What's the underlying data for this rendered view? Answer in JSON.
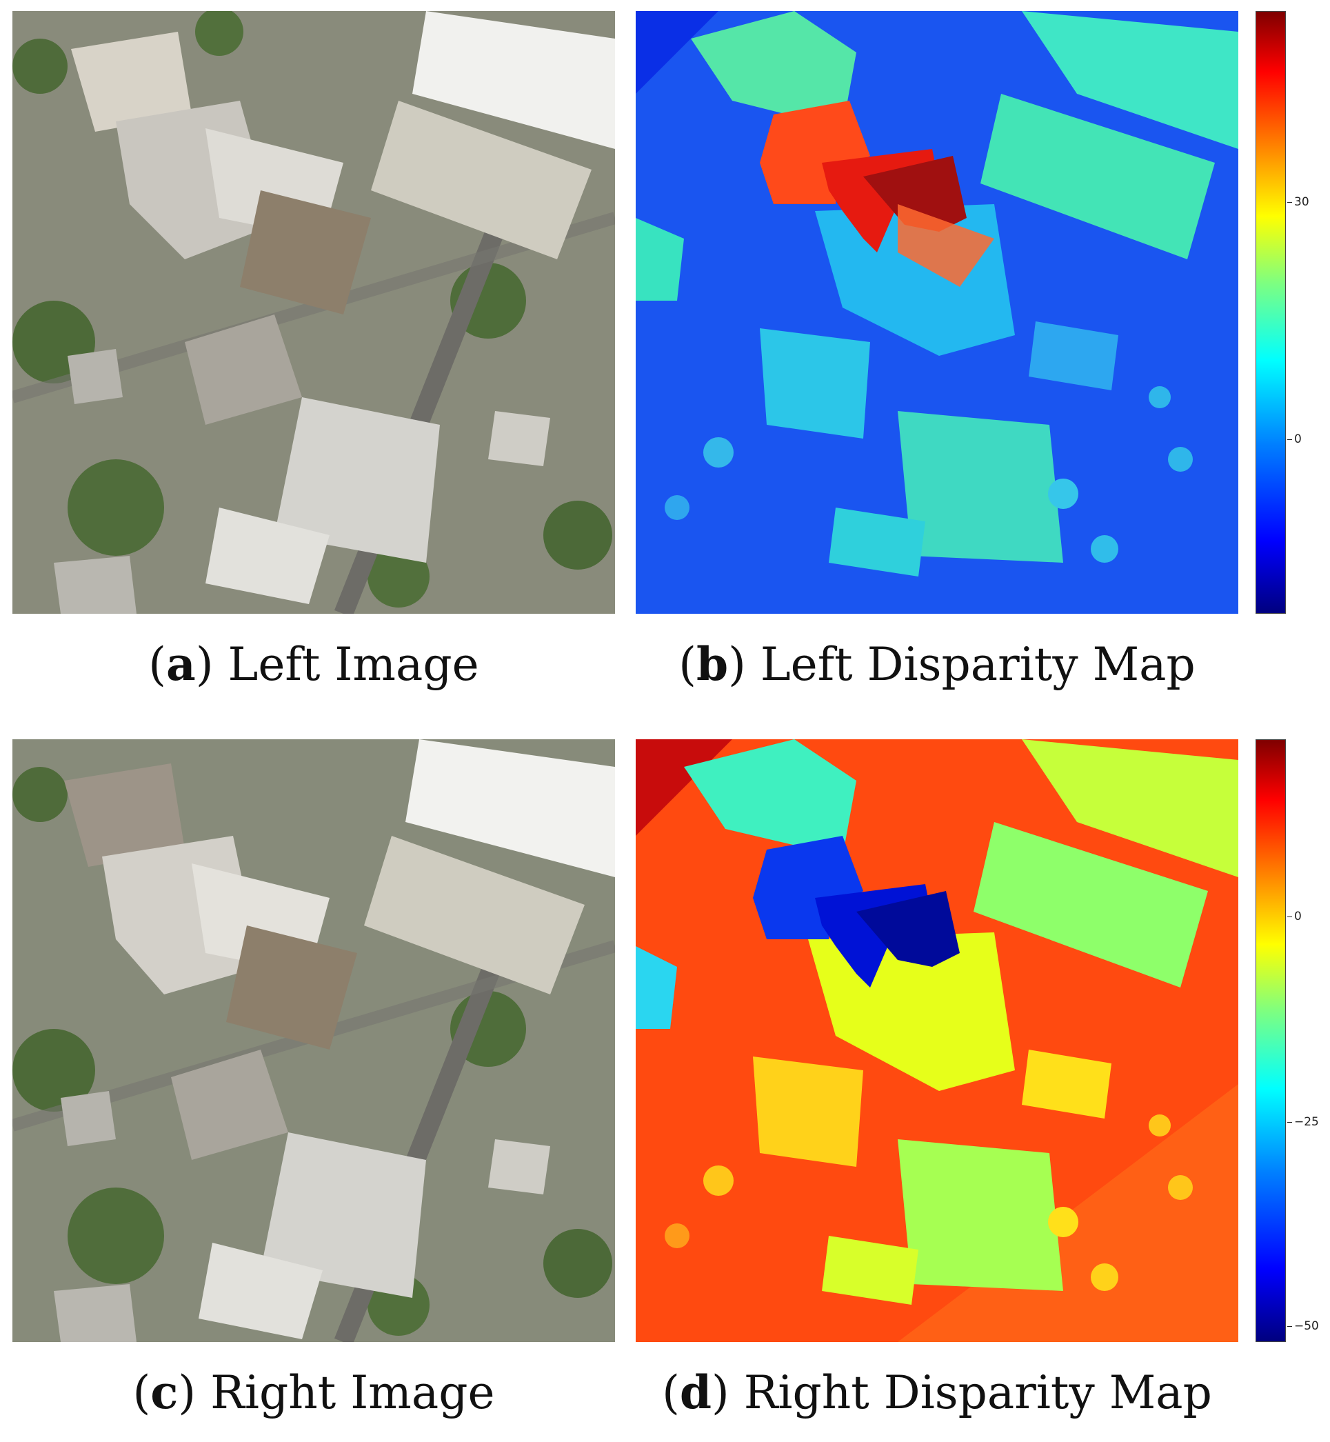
{
  "panels": {
    "a": {
      "letter": "a",
      "title": "Left Image"
    },
    "b": {
      "letter": "b",
      "title": "Left Disparity Map"
    },
    "c": {
      "letter": "c",
      "title": "Right Image"
    },
    "d": {
      "letter": "d",
      "title": "Right Disparity Map"
    }
  },
  "colorbars": {
    "b": {
      "ticks": [
        "30",
        "0"
      ],
      "colormap": "jet"
    },
    "d": {
      "ticks": [
        "0",
        "−25",
        "−50"
      ],
      "colormap": "jet"
    }
  },
  "colors": {
    "map_b_background": "#1a55f0",
    "map_d_background": "#ff4a10"
  }
}
